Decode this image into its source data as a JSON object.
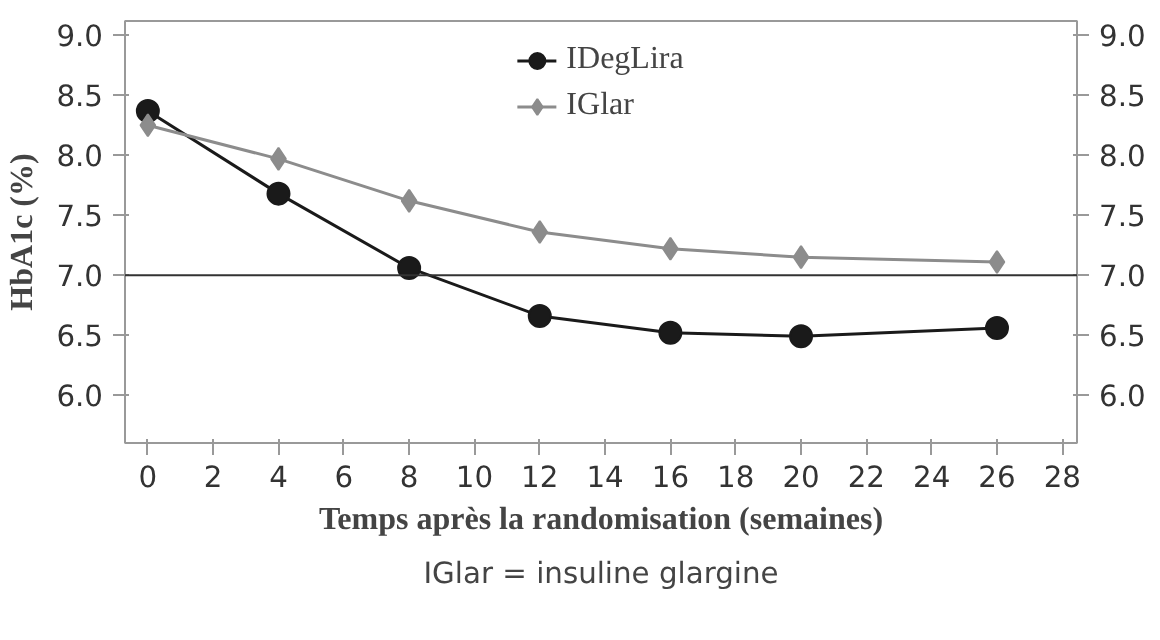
{
  "chart_data": {
    "type": "line",
    "xlabel": "Temps après la randomisation (semaines)",
    "ylabel": "HbA1c (%)",
    "x": [
      0,
      4,
      8,
      12,
      16,
      20,
      26
    ],
    "series": [
      {
        "name": "IDegLira",
        "color": "#1a1a1a",
        "marker": "circle",
        "values": [
          8.37,
          7.68,
          7.06,
          6.66,
          6.52,
          6.49,
          6.56
        ]
      },
      {
        "name": "IGlar",
        "color": "#8c8c8c",
        "marker": "diamond",
        "values": [
          8.25,
          7.97,
          7.62,
          7.36,
          7.22,
          7.15,
          7.11
        ]
      }
    ],
    "xlim": [
      -0.7,
      28.45
    ],
    "xticks": [
      0,
      2,
      4,
      6,
      8,
      10,
      12,
      14,
      16,
      18,
      20,
      22,
      24,
      26,
      28
    ],
    "ylim": [
      5.6,
      9.12
    ],
    "yticks": [
      {
        "value": 6,
        "label": "6.0"
      },
      6.5,
      {
        "value": 7,
        "label": "7.0"
      },
      7.5,
      {
        "value": 8,
        "label": "8.0"
      },
      8.5,
      {
        "value": 9,
        "label": "9.0"
      }
    ],
    "y2lim": [
      5.6,
      9.12
    ],
    "y2ticks": [
      {
        "value": 6,
        "label": "6.0"
      },
      6.5,
      {
        "value": 7,
        "label": "7.0"
      },
      7.5,
      {
        "value": 8,
        "label": "8.0"
      },
      8.5,
      {
        "value": 9,
        "label": "9.0"
      }
    ],
    "ref_lines": [
      {
        "axis": "y",
        "value": 7.0,
        "color": "#333333"
      }
    ],
    "grid": false,
    "legend": "top",
    "annotations": [
      "IGlar = insuline glargine"
    ]
  }
}
